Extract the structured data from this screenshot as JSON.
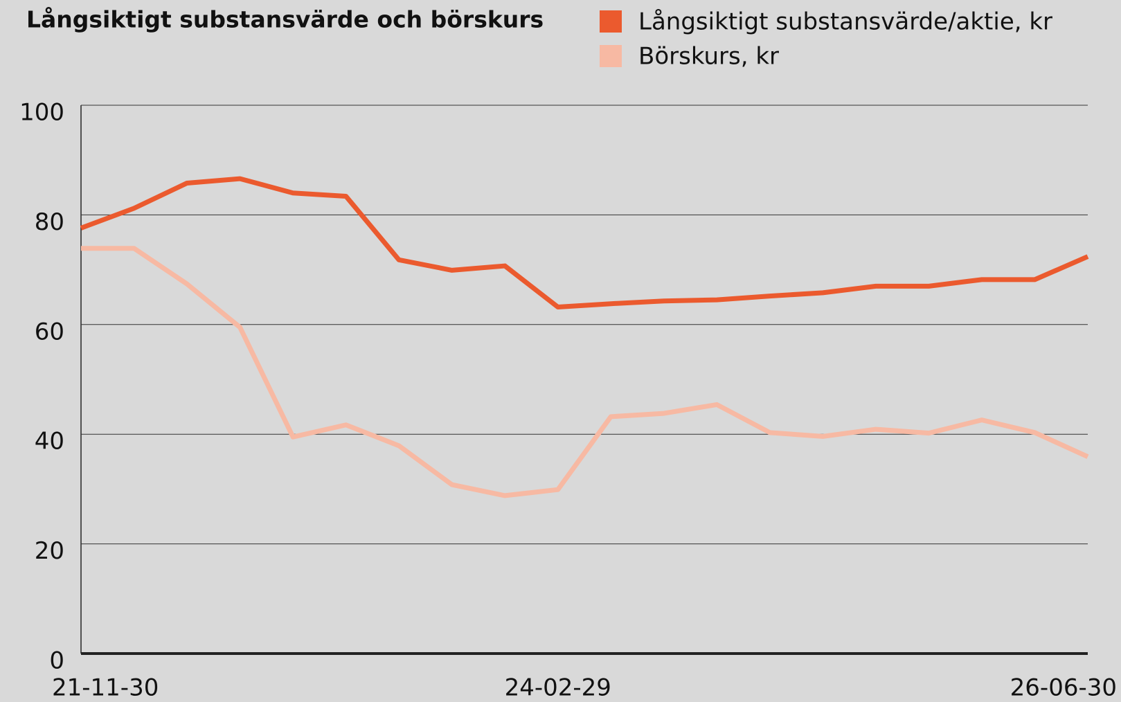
{
  "chart_data": {
    "type": "line",
    "title": "Långsiktigt substansvärde och börskurs",
    "categories": [
      "21-11-30",
      null,
      null,
      null,
      null,
      null,
      null,
      null,
      null,
      "24-02-29",
      null,
      null,
      null,
      null,
      null,
      null,
      null,
      null,
      null,
      "26-06-30"
    ],
    "series": [
      {
        "name": "Långsiktigt substansvärde/aktie, kr",
        "color": "#eb5a2e",
        "values": [
          77.6,
          81.2,
          85.8,
          86.6,
          84.0,
          83.4,
          71.8,
          69.9,
          70.7,
          63.2,
          63.8,
          64.3,
          64.5,
          65.2,
          65.8,
          67.0,
          67.0,
          68.2,
          68.2,
          72.4
        ]
      },
      {
        "name": "Börskurs, kr",
        "color": "#f7b9a3",
        "values": [
          73.9,
          73.9,
          67.4,
          59.5,
          39.5,
          41.7,
          37.9,
          30.8,
          28.8,
          29.9,
          43.2,
          43.8,
          45.4,
          40.3,
          39.6,
          40.9,
          40.2,
          42.6,
          40.3,
          35.9
        ]
      }
    ],
    "ylim": [
      0,
      100
    ],
    "yticks": [
      0,
      20,
      40,
      60,
      80,
      100
    ],
    "grid": true
  }
}
